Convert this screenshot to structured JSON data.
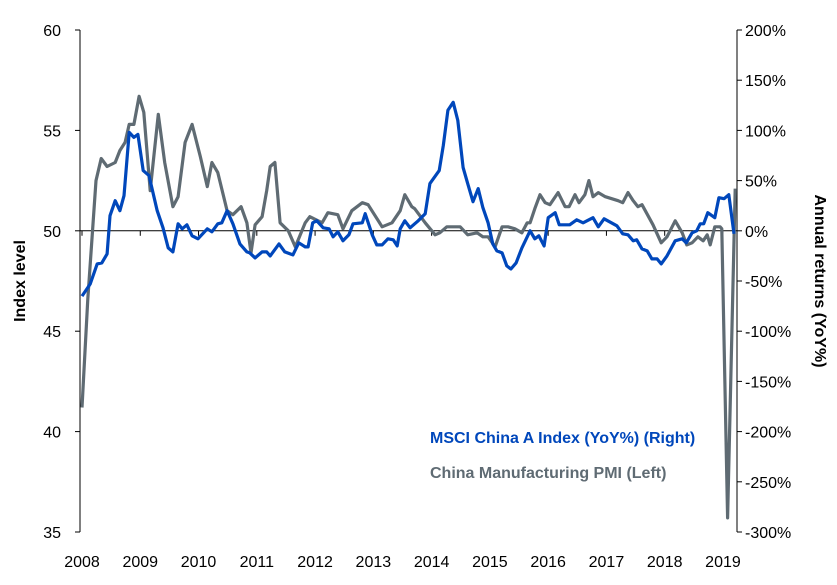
{
  "chart_data": {
    "type": "line",
    "title": "",
    "xlabel": "",
    "ylabel_left": "Index level",
    "ylabel_right": "Annual returns (YoY%)",
    "ylim_left": [
      35,
      60
    ],
    "ylim_right": [
      -300,
      200
    ],
    "xlim": [
      2008,
      2019.25
    ],
    "x_ticks": [
      "2008",
      "2009",
      "2010",
      "2011",
      "2012",
      "2013",
      "2014",
      "2015",
      "2016",
      "2017",
      "2018",
      "2019"
    ],
    "y_ticks_left": [
      "35",
      "40",
      "45",
      "50",
      "55",
      "60"
    ],
    "y_ticks_right": [
      "-300%",
      "-250%",
      "-200%",
      "-150%",
      "-100%",
      "-50%",
      "0%",
      "50%",
      "100%",
      "150%",
      "200%"
    ],
    "grid": false,
    "legend_placement": "bottom-right",
    "series": [
      {
        "name": "MSCI China A Index (YoY%) (Right)",
        "axis": "right",
        "color": "#0047BB",
        "points": [
          [
            2008.0,
            -65
          ],
          [
            2008.14,
            -53
          ],
          [
            2008.26,
            -33
          ],
          [
            2008.34,
            -32
          ],
          [
            2008.43,
            -23
          ],
          [
            2008.48,
            15
          ],
          [
            2008.57,
            30
          ],
          [
            2008.65,
            20
          ],
          [
            2008.72,
            35
          ],
          [
            2008.81,
            98
          ],
          [
            2008.89,
            93
          ],
          [
            2008.96,
            96
          ],
          [
            2009.05,
            60
          ],
          [
            2009.15,
            55
          ],
          [
            2009.29,
            20
          ],
          [
            2009.39,
            3
          ],
          [
            2009.48,
            -17
          ],
          [
            2009.56,
            -21
          ],
          [
            2009.65,
            7
          ],
          [
            2009.72,
            2
          ],
          [
            2009.8,
            6
          ],
          [
            2009.89,
            -5
          ],
          [
            2009.99,
            -8
          ],
          [
            2010.15,
            2
          ],
          [
            2010.23,
            -1
          ],
          [
            2010.33,
            7
          ],
          [
            2010.4,
            8
          ],
          [
            2010.49,
            20
          ],
          [
            2010.59,
            7
          ],
          [
            2010.71,
            -13
          ],
          [
            2010.83,
            -21
          ],
          [
            2010.88,
            -22
          ],
          [
            2010.97,
            -27
          ],
          [
            2011.09,
            -21
          ],
          [
            2011.17,
            -21
          ],
          [
            2011.23,
            -25
          ],
          [
            2011.38,
            -13
          ],
          [
            2011.48,
            -21
          ],
          [
            2011.62,
            -24
          ],
          [
            2011.72,
            -12
          ],
          [
            2011.83,
            -16
          ],
          [
            2011.88,
            -16
          ],
          [
            2011.96,
            8
          ],
          [
            2012.03,
            10
          ],
          [
            2012.14,
            3
          ],
          [
            2012.24,
            2
          ],
          [
            2012.31,
            -6
          ],
          [
            2012.39,
            -1
          ],
          [
            2012.48,
            -10
          ],
          [
            2012.58,
            -4
          ],
          [
            2012.65,
            7
          ],
          [
            2012.81,
            8
          ],
          [
            2012.86,
            17
          ],
          [
            2012.98,
            -4
          ],
          [
            2013.06,
            -14
          ],
          [
            2013.15,
            -14
          ],
          [
            2013.25,
            -8
          ],
          [
            2013.34,
            -9
          ],
          [
            2013.41,
            -15
          ],
          [
            2013.46,
            2
          ],
          [
            2013.54,
            10
          ],
          [
            2013.63,
            3
          ],
          [
            2013.71,
            7
          ],
          [
            2013.77,
            10
          ],
          [
            2013.89,
            17
          ],
          [
            2013.97,
            47
          ],
          [
            2014.13,
            60
          ],
          [
            2014.2,
            85
          ],
          [
            2014.28,
            120
          ],
          [
            2014.37,
            128
          ],
          [
            2014.45,
            110
          ],
          [
            2014.54,
            63
          ],
          [
            2014.62,
            47
          ],
          [
            2014.71,
            29
          ],
          [
            2014.8,
            42
          ],
          [
            2014.88,
            23
          ],
          [
            2014.97,
            8
          ],
          [
            2015.05,
            -13
          ],
          [
            2015.12,
            -20
          ],
          [
            2015.21,
            -22
          ],
          [
            2015.29,
            -35
          ],
          [
            2015.36,
            -38
          ],
          [
            2015.45,
            -32
          ],
          [
            2015.55,
            -17
          ],
          [
            2015.69,
            0
          ],
          [
            2015.77,
            -8
          ],
          [
            2015.84,
            -5
          ],
          [
            2015.93,
            -15
          ],
          [
            2016.0,
            13
          ],
          [
            2016.12,
            18
          ],
          [
            2016.19,
            6
          ],
          [
            2016.37,
            6
          ],
          [
            2016.49,
            11
          ],
          [
            2016.6,
            8
          ],
          [
            2016.77,
            13
          ],
          [
            2016.86,
            4
          ],
          [
            2016.96,
            12
          ],
          [
            2017.18,
            5
          ],
          [
            2017.28,
            -3
          ],
          [
            2017.37,
            -4
          ],
          [
            2017.46,
            -10
          ],
          [
            2017.52,
            -9
          ],
          [
            2017.61,
            -18
          ],
          [
            2017.7,
            -20
          ],
          [
            2017.78,
            -28
          ],
          [
            2017.87,
            -28
          ],
          [
            2017.94,
            -33
          ],
          [
            2018.04,
            -25
          ],
          [
            2018.18,
            -10
          ],
          [
            2018.3,
            -8
          ],
          [
            2018.37,
            -12
          ],
          [
            2018.47,
            -2
          ],
          [
            2018.55,
            0
          ],
          [
            2018.61,
            7
          ],
          [
            2018.67,
            7
          ],
          [
            2018.74,
            18
          ],
          [
            2018.86,
            13
          ],
          [
            2018.93,
            33
          ],
          [
            2019.02,
            32
          ],
          [
            2019.1,
            36
          ],
          [
            2019.19,
            -3
          ]
        ]
      },
      {
        "name": "China Manufacturing PMI (Left)",
        "axis": "left",
        "color": "#5F6B73",
        "points": [
          [
            2008.0,
            41.2
          ],
          [
            2008.1,
            46.6
          ],
          [
            2008.24,
            52.5
          ],
          [
            2008.33,
            53.6
          ],
          [
            2008.43,
            53.2
          ],
          [
            2008.57,
            53.4
          ],
          [
            2008.65,
            54.0
          ],
          [
            2008.74,
            54.4
          ],
          [
            2008.81,
            55.3
          ],
          [
            2008.89,
            55.3
          ],
          [
            2008.98,
            56.7
          ],
          [
            2009.06,
            55.9
          ],
          [
            2009.17,
            52.0
          ],
          [
            2009.31,
            55.8
          ],
          [
            2009.42,
            53.4
          ],
          [
            2009.56,
            51.2
          ],
          [
            2009.65,
            51.7
          ],
          [
            2009.77,
            54.4
          ],
          [
            2009.89,
            55.3
          ],
          [
            2010.03,
            53.7
          ],
          [
            2010.15,
            52.2
          ],
          [
            2010.23,
            53.4
          ],
          [
            2010.33,
            52.9
          ],
          [
            2010.49,
            51.0
          ],
          [
            2010.59,
            50.8
          ],
          [
            2010.73,
            51.2
          ],
          [
            2010.83,
            50.4
          ],
          [
            2010.9,
            48.9
          ],
          [
            2010.97,
            50.3
          ],
          [
            2011.09,
            50.7
          ],
          [
            2011.17,
            52.0
          ],
          [
            2011.23,
            53.2
          ],
          [
            2011.31,
            53.4
          ],
          [
            2011.4,
            50.4
          ],
          [
            2011.54,
            50.0
          ],
          [
            2011.66,
            49.2
          ],
          [
            2011.83,
            50.4
          ],
          [
            2011.91,
            50.7
          ],
          [
            2012.12,
            50.4
          ],
          [
            2012.22,
            50.9
          ],
          [
            2012.39,
            50.8
          ],
          [
            2012.48,
            50.1
          ],
          [
            2012.63,
            51.0
          ],
          [
            2012.81,
            51.4
          ],
          [
            2012.91,
            51.3
          ],
          [
            2013.15,
            50.2
          ],
          [
            2013.32,
            50.4
          ],
          [
            2013.46,
            51.0
          ],
          [
            2013.54,
            51.8
          ],
          [
            2013.66,
            51.2
          ],
          [
            2013.71,
            51.1
          ],
          [
            2013.89,
            50.4
          ],
          [
            2014.06,
            49.8
          ],
          [
            2014.14,
            49.9
          ],
          [
            2014.26,
            50.2
          ],
          [
            2014.4,
            50.2
          ],
          [
            2014.49,
            50.2
          ],
          [
            2014.62,
            49.8
          ],
          [
            2014.78,
            49.9
          ],
          [
            2014.88,
            49.7
          ],
          [
            2014.97,
            49.7
          ],
          [
            2015.09,
            49.2
          ],
          [
            2015.21,
            50.2
          ],
          [
            2015.31,
            50.2
          ],
          [
            2015.43,
            50.1
          ],
          [
            2015.55,
            49.9
          ],
          [
            2015.64,
            50.4
          ],
          [
            2015.69,
            50.4
          ],
          [
            2015.77,
            51.1
          ],
          [
            2015.86,
            51.8
          ],
          [
            2015.95,
            51.4
          ],
          [
            2016.03,
            51.3
          ],
          [
            2016.17,
            51.9
          ],
          [
            2016.29,
            51.2
          ],
          [
            2016.36,
            51.2
          ],
          [
            2016.46,
            51.8
          ],
          [
            2016.53,
            51.4
          ],
          [
            2016.63,
            51.8
          ],
          [
            2016.7,
            52.5
          ],
          [
            2016.77,
            51.7
          ],
          [
            2016.86,
            51.9
          ],
          [
            2016.98,
            51.7
          ],
          [
            2017.2,
            51.5
          ],
          [
            2017.28,
            51.4
          ],
          [
            2017.37,
            51.9
          ],
          [
            2017.46,
            51.5
          ],
          [
            2017.54,
            51.2
          ],
          [
            2017.61,
            51.3
          ],
          [
            2017.8,
            50.3
          ],
          [
            2017.94,
            49.4
          ],
          [
            2018.04,
            49.7
          ],
          [
            2018.18,
            50.5
          ],
          [
            2018.3,
            49.9
          ],
          [
            2018.38,
            49.3
          ],
          [
            2018.47,
            49.4
          ],
          [
            2018.57,
            49.7
          ],
          [
            2018.66,
            49.5
          ],
          [
            2018.73,
            49.8
          ],
          [
            2018.78,
            49.3
          ],
          [
            2018.86,
            50.2
          ],
          [
            2018.95,
            50.2
          ],
          [
            2018.98,
            50.1
          ],
          [
            2019.08,
            35.7
          ],
          [
            2019.21,
            52.1
          ]
        ]
      }
    ]
  }
}
